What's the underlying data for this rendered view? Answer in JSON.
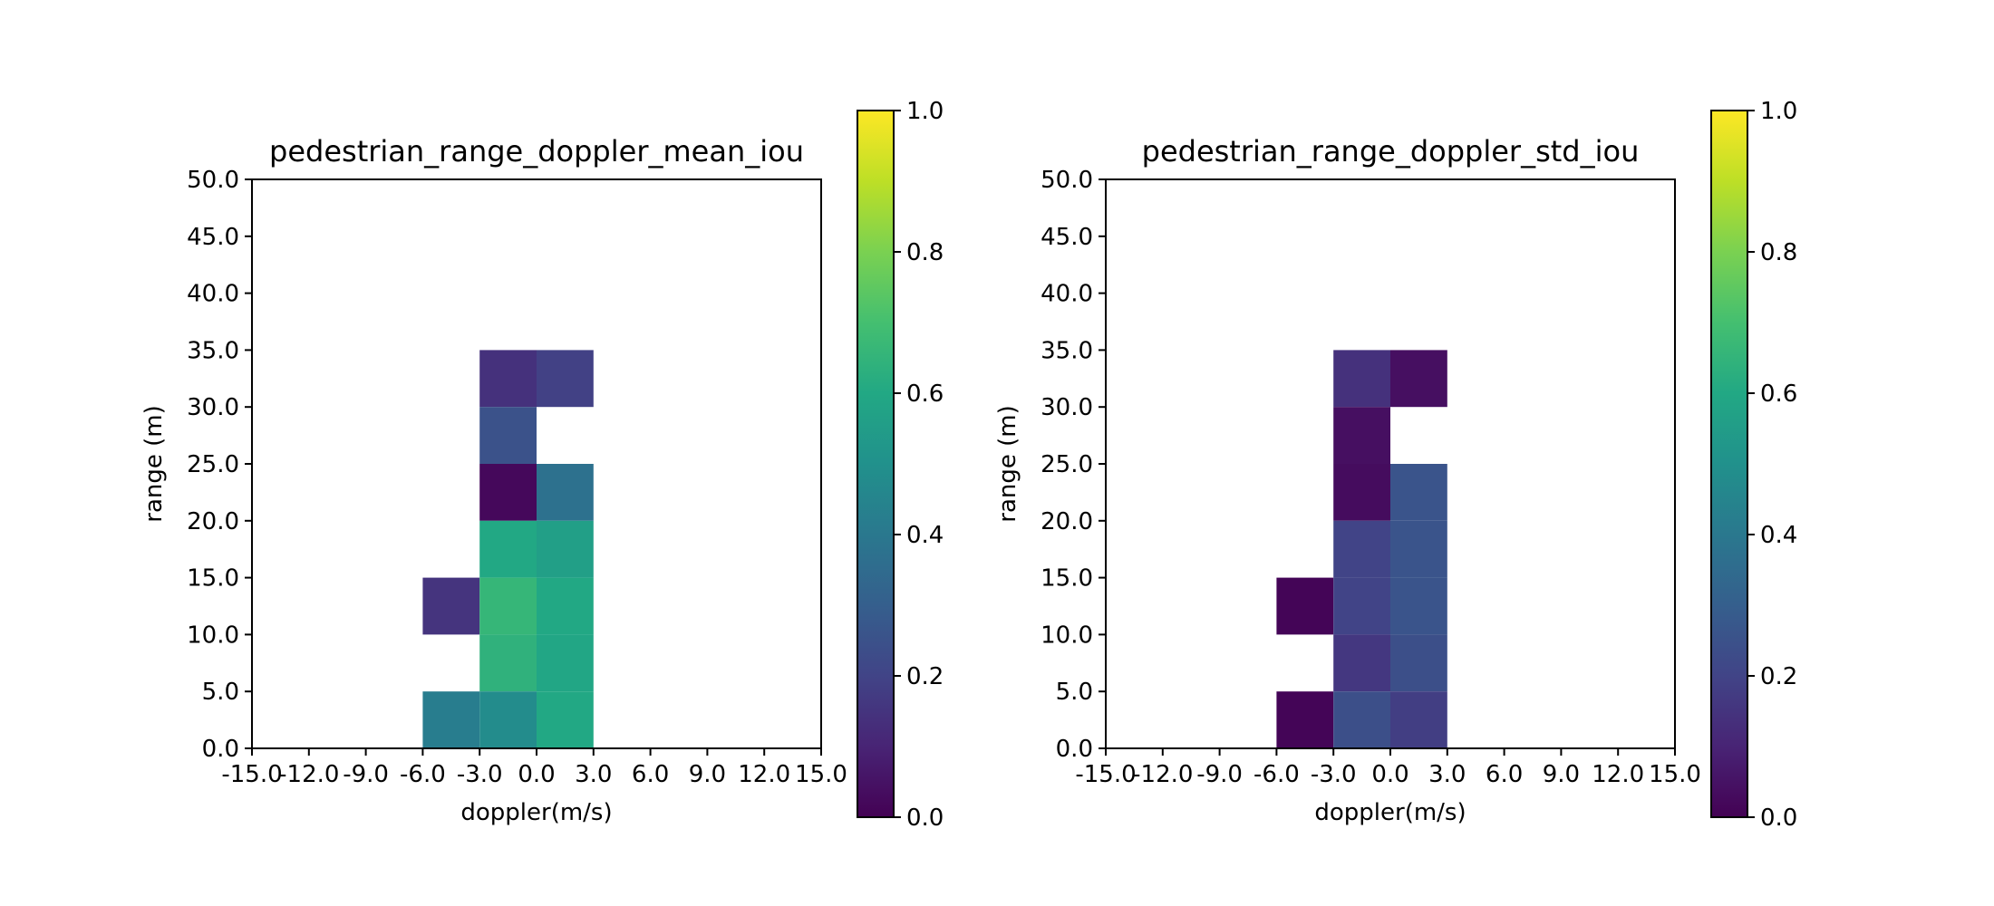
{
  "chart_data": [
    {
      "type": "heatmap",
      "title": "pedestrian_range_doppler_mean_iou",
      "xlabel": "doppler(m/s)",
      "ylabel": "range (m)",
      "xlim": [
        -15,
        15
      ],
      "ylim": [
        0,
        50
      ],
      "x_tick_labels": [
        "-15.0",
        "-12.0",
        "-9.0",
        "-6.0",
        "-3.0",
        "0.0",
        "3.0",
        "6.0",
        "9.0",
        "12.0",
        "15.0"
      ],
      "y_tick_labels": [
        "0.0",
        "5.0",
        "10.0",
        "15.0",
        "20.0",
        "25.0",
        "30.0",
        "35.0",
        "40.0",
        "45.0",
        "50.0"
      ],
      "colorbar": {
        "min": 0.0,
        "max": 1.0,
        "colormap": "viridis",
        "tick_labels": [
          "0.0",
          "0.2",
          "0.4",
          "0.6",
          "0.8",
          "1.0"
        ]
      },
      "cell_size": {
        "doppler": 3,
        "range": 5
      },
      "cells": [
        {
          "doppler": [
            -3,
            0
          ],
          "range": [
            30,
            35
          ],
          "value": 0.14
        },
        {
          "doppler": [
            0,
            3
          ],
          "range": [
            30,
            35
          ],
          "value": 0.19
        },
        {
          "doppler": [
            -3,
            0
          ],
          "range": [
            25,
            30
          ],
          "value": 0.25
        },
        {
          "doppler": [
            -3,
            0
          ],
          "range": [
            20,
            25
          ],
          "value": 0.02
        },
        {
          "doppler": [
            0,
            3
          ],
          "range": [
            20,
            25
          ],
          "value": 0.37
        },
        {
          "doppler": [
            -3,
            0
          ],
          "range": [
            15,
            20
          ],
          "value": 0.6
        },
        {
          "doppler": [
            0,
            3
          ],
          "range": [
            15,
            20
          ],
          "value": 0.56
        },
        {
          "doppler": [
            -6,
            -3
          ],
          "range": [
            10,
            15
          ],
          "value": 0.15
        },
        {
          "doppler": [
            -3,
            0
          ],
          "range": [
            10,
            15
          ],
          "value": 0.66
        },
        {
          "doppler": [
            0,
            3
          ],
          "range": [
            10,
            15
          ],
          "value": 0.6
        },
        {
          "doppler": [
            -3,
            0
          ],
          "range": [
            5,
            10
          ],
          "value": 0.64
        },
        {
          "doppler": [
            0,
            3
          ],
          "range": [
            5,
            10
          ],
          "value": 0.59
        },
        {
          "doppler": [
            -6,
            -3
          ],
          "range": [
            0,
            5
          ],
          "value": 0.42
        },
        {
          "doppler": [
            -3,
            0
          ],
          "range": [
            0,
            5
          ],
          "value": 0.48
        },
        {
          "doppler": [
            0,
            3
          ],
          "range": [
            0,
            5
          ],
          "value": 0.6
        }
      ]
    },
    {
      "type": "heatmap",
      "title": "pedestrian_range_doppler_std_iou",
      "xlabel": "doppler(m/s)",
      "ylabel": "range (m)",
      "xlim": [
        -15,
        15
      ],
      "ylim": [
        0,
        50
      ],
      "x_tick_labels": [
        "-15.0",
        "-12.0",
        "-9.0",
        "-6.0",
        "-3.0",
        "0.0",
        "3.0",
        "6.0",
        "9.0",
        "12.0",
        "15.0"
      ],
      "y_tick_labels": [
        "0.0",
        "5.0",
        "10.0",
        "15.0",
        "20.0",
        "25.0",
        "30.0",
        "35.0",
        "40.0",
        "45.0",
        "50.0"
      ],
      "colorbar": {
        "min": 0.0,
        "max": 1.0,
        "colormap": "viridis",
        "tick_labels": [
          "0.0",
          "0.2",
          "0.4",
          "0.6",
          "0.8",
          "1.0"
        ]
      },
      "cell_size": {
        "doppler": 3,
        "range": 5
      },
      "cells": [
        {
          "doppler": [
            -3,
            0
          ],
          "range": [
            30,
            35
          ],
          "value": 0.14
        },
        {
          "doppler": [
            0,
            3
          ],
          "range": [
            30,
            35
          ],
          "value": 0.04
        },
        {
          "doppler": [
            -3,
            0
          ],
          "range": [
            25,
            30
          ],
          "value": 0.04
        },
        {
          "doppler": [
            -3,
            0
          ],
          "range": [
            20,
            25
          ],
          "value": 0.03
        },
        {
          "doppler": [
            0,
            3
          ],
          "range": [
            20,
            25
          ],
          "value": 0.26
        },
        {
          "doppler": [
            -3,
            0
          ],
          "range": [
            15,
            20
          ],
          "value": 0.2
        },
        {
          "doppler": [
            0,
            3
          ],
          "range": [
            15,
            20
          ],
          "value": 0.26
        },
        {
          "doppler": [
            -6,
            -3
          ],
          "range": [
            10,
            15
          ],
          "value": 0.01
        },
        {
          "doppler": [
            -3,
            0
          ],
          "range": [
            10,
            15
          ],
          "value": 0.2
        },
        {
          "doppler": [
            0,
            3
          ],
          "range": [
            10,
            15
          ],
          "value": 0.26
        },
        {
          "doppler": [
            -3,
            0
          ],
          "range": [
            5,
            10
          ],
          "value": 0.16
        },
        {
          "doppler": [
            0,
            3
          ],
          "range": [
            5,
            10
          ],
          "value": 0.24
        },
        {
          "doppler": [
            -6,
            -3
          ],
          "range": [
            0,
            5
          ],
          "value": 0.01
        },
        {
          "doppler": [
            -3,
            0
          ],
          "range": [
            0,
            5
          ],
          "value": 0.24
        },
        {
          "doppler": [
            0,
            3
          ],
          "range": [
            0,
            5
          ],
          "value": 0.18
        }
      ]
    }
  ]
}
